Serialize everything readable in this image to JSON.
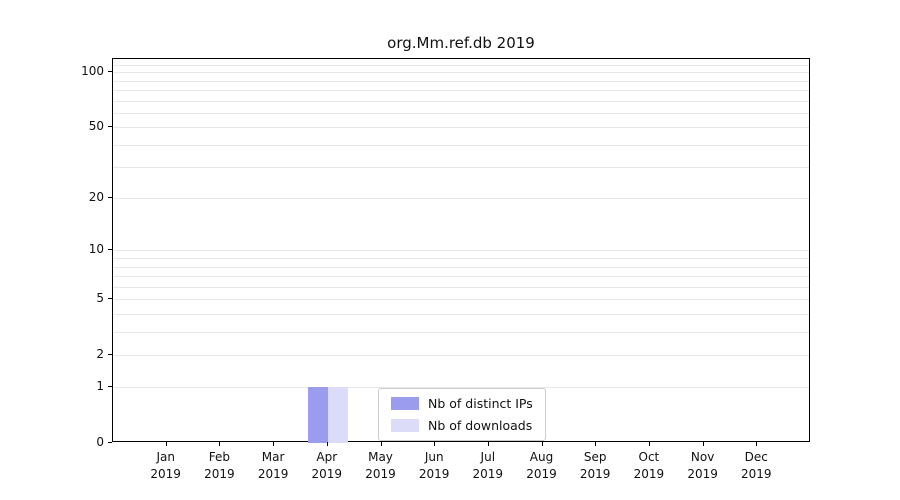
{
  "chart_data": {
    "type": "bar",
    "title": "org.Mm.ref.db 2019",
    "categories": [
      "Jan",
      "Feb",
      "Mar",
      "Apr",
      "May",
      "Jun",
      "Jul",
      "Aug",
      "Sep",
      "Oct",
      "Nov",
      "Dec"
    ],
    "year": "2019",
    "series": [
      {
        "name": "Nb of distinct IPs",
        "color": "#9c9cee",
        "values": [
          0,
          0,
          0,
          1,
          0,
          0,
          0,
          0,
          0,
          0,
          0,
          0
        ]
      },
      {
        "name": "Nb of downloads",
        "color": "#dcdcf8",
        "values": [
          0,
          0,
          0,
          1,
          0,
          0,
          0,
          0,
          0,
          0,
          0,
          0
        ]
      }
    ],
    "yticks": [
      0,
      1,
      2,
      5,
      10,
      20,
      50,
      100
    ],
    "minor_gridlines": [
      1,
      2,
      3,
      4,
      5,
      6,
      7,
      8,
      9,
      10,
      20,
      30,
      40,
      50,
      60,
      70,
      80,
      90,
      100,
      110
    ],
    "yscale": "log1p",
    "ylim": [
      0,
      118
    ],
    "grid": true,
    "legend_position": "lower center"
  }
}
